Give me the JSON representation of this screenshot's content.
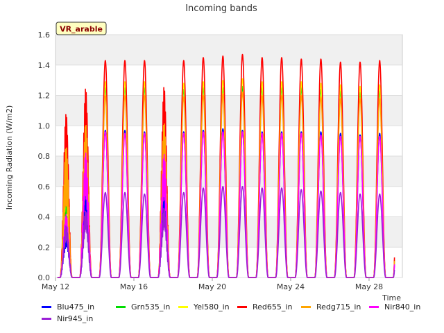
{
  "chart_data": {
    "type": "line",
    "title": "Incoming bands",
    "ylabel": "Incoming Radiation (W/m2)",
    "xlabel": "Time",
    "badge": "VR_arable",
    "xlim": [
      "2024-05-12",
      "2024-05-29.7"
    ],
    "ylim": [
      0,
      1.6
    ],
    "yticks": [
      "0.0",
      "0.2",
      "0.4",
      "0.6",
      "0.8",
      "1.0",
      "1.2",
      "1.4",
      "1.6"
    ],
    "xticks": [
      {
        "date": "2024-05-12",
        "label": "May 12"
      },
      {
        "date": "2024-05-16",
        "label": "May 16"
      },
      {
        "date": "2024-05-20",
        "label": "May 20"
      },
      {
        "date": "2024-05-24",
        "label": "May 24"
      },
      {
        "date": "2024-05-28",
        "label": "May 28"
      }
    ],
    "grid": true,
    "legend_position": "bottom",
    "days": [
      "2024-05-12",
      "2024-05-13",
      "2024-05-14",
      "2024-05-15",
      "2024-05-16",
      "2024-05-17",
      "2024-05-18",
      "2024-05-19",
      "2024-05-20",
      "2024-05-21",
      "2024-05-22",
      "2024-05-23",
      "2024-05-24",
      "2024-05-25",
      "2024-05-26",
      "2024-05-27",
      "2024-05-28",
      "2024-05-29"
    ],
    "series": [
      {
        "name": "Blu475_in",
        "color": "#0000ff",
        "daily_peak": [
          0.35,
          0.62,
          0.97,
          0.97,
          0.96,
          0.65,
          0.96,
          0.97,
          0.98,
          0.97,
          0.96,
          0.96,
          0.96,
          0.96,
          0.95,
          0.94,
          0.95,
          0.94
        ]
      },
      {
        "name": "Grn535_in",
        "color": "#00dd00",
        "daily_peak": [
          0.55,
          0.98,
          1.25,
          1.25,
          1.25,
          0.98,
          1.24,
          1.25,
          1.25,
          1.26,
          1.25,
          1.25,
          1.25,
          1.24,
          1.23,
          1.22,
          1.23,
          1.22
        ]
      },
      {
        "name": "Yel580_in",
        "color": "#ffff00",
        "daily_peak": [
          0.69,
          1.02,
          1.29,
          1.29,
          1.29,
          1.0,
          1.28,
          1.29,
          1.3,
          1.31,
          1.29,
          1.29,
          1.29,
          1.28,
          1.27,
          1.26,
          1.27,
          1.26
        ]
      },
      {
        "name": "Red655_in",
        "color": "#ff0000",
        "daily_peak": [
          1.09,
          1.26,
          1.43,
          1.43,
          1.43,
          1.27,
          1.43,
          1.45,
          1.46,
          1.47,
          1.45,
          1.45,
          1.44,
          1.44,
          1.42,
          1.42,
          1.43,
          1.43
        ]
      },
      {
        "name": "Redg715_in",
        "color": "#ffa500",
        "daily_peak": [
          0.86,
          1.01,
          1.2,
          1.2,
          1.2,
          1.02,
          1.19,
          1.2,
          1.21,
          1.22,
          1.2,
          1.2,
          1.2,
          1.19,
          1.18,
          1.18,
          1.18,
          1.18
        ]
      },
      {
        "name": "Nir840_in",
        "color": "#ff00ff",
        "daily_peak": [
          0.42,
          0.83,
          0.96,
          0.95,
          0.95,
          0.82,
          0.95,
          0.96,
          0.96,
          0.96,
          0.95,
          0.95,
          0.95,
          0.94,
          0.93,
          0.93,
          0.93,
          0.93
        ]
      },
      {
        "name": "Nir945_in",
        "color": "#9a1fd6",
        "daily_peak": [
          0.35,
          0.45,
          0.56,
          0.56,
          0.55,
          0.47,
          0.56,
          0.59,
          0.6,
          0.6,
          0.59,
          0.59,
          0.58,
          0.57,
          0.56,
          0.55,
          0.55,
          0.55
        ]
      }
    ]
  }
}
